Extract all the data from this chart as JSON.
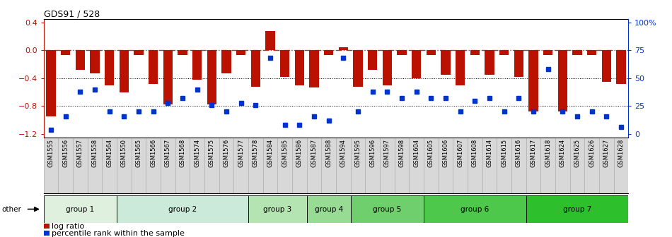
{
  "title": "GDS91 / 528",
  "samples": [
    "GSM1555",
    "GSM1556",
    "GSM1557",
    "GSM1558",
    "GSM1564",
    "GSM1550",
    "GSM1565",
    "GSM1566",
    "GSM1567",
    "GSM1568",
    "GSM1574",
    "GSM1575",
    "GSM1576",
    "GSM1577",
    "GSM1578",
    "GSM1584",
    "GSM1585",
    "GSM1586",
    "GSM1587",
    "GSM1588",
    "GSM1594",
    "GSM1595",
    "GSM1596",
    "GSM1597",
    "GSM1598",
    "GSM1604",
    "GSM1605",
    "GSM1606",
    "GSM1607",
    "GSM1608",
    "GSM1614",
    "GSM1615",
    "GSM1616",
    "GSM1617",
    "GSM1618",
    "GSM1624",
    "GSM1625",
    "GSM1626",
    "GSM1627",
    "GSM1628"
  ],
  "log_ratio": [
    -0.95,
    -0.07,
    -0.28,
    -0.33,
    -0.5,
    -0.6,
    -0.07,
    -0.48,
    -0.78,
    -0.07,
    -0.42,
    -0.78,
    -0.33,
    -0.07,
    -0.52,
    0.28,
    -0.38,
    -0.5,
    -0.53,
    -0.07,
    0.04,
    -0.52,
    -0.28,
    -0.5,
    -0.07,
    -0.4,
    -0.07,
    -0.35,
    -0.5,
    -0.07,
    -0.35,
    -0.07,
    -0.38,
    -0.88,
    -0.07,
    -0.88,
    -0.07,
    -0.07,
    -0.45,
    -0.48
  ],
  "percentile": [
    4,
    16,
    38,
    40,
    20,
    16,
    20,
    20,
    28,
    32,
    40,
    26,
    20,
    28,
    26,
    68,
    8,
    8,
    16,
    12,
    68,
    20,
    38,
    38,
    32,
    38,
    32,
    32,
    20,
    30,
    32,
    20,
    32,
    20,
    58,
    20,
    16,
    20,
    16,
    6
  ],
  "groups": [
    {
      "name": "group 1",
      "start": 0,
      "end": 5
    },
    {
      "name": "group 2",
      "start": 5,
      "end": 14
    },
    {
      "name": "group 3",
      "start": 14,
      "end": 18
    },
    {
      "name": "group 4",
      "start": 18,
      "end": 21
    },
    {
      "name": "group 5",
      "start": 21,
      "end": 26
    },
    {
      "name": "group 6",
      "start": 26,
      "end": 33
    },
    {
      "name": "group 7",
      "start": 33,
      "end": 40
    }
  ],
  "group_colors": [
    "#dff0de",
    "#cbead9",
    "#b5e4b3",
    "#97db95",
    "#6ecf6c",
    "#4dc84b",
    "#2ec02c"
  ],
  "bar_color": "#bb1100",
  "dot_color": "#0033cc",
  "ylim": [
    -1.25,
    0.45
  ],
  "yticks_left": [
    0.4,
    0.0,
    -0.4,
    -0.8,
    -1.2
  ],
  "yticks_right_pct": [
    100,
    75,
    50,
    25,
    0
  ],
  "background_color": "#ffffff",
  "label_bg": "#d8d8d8",
  "spine_color": "#888888"
}
